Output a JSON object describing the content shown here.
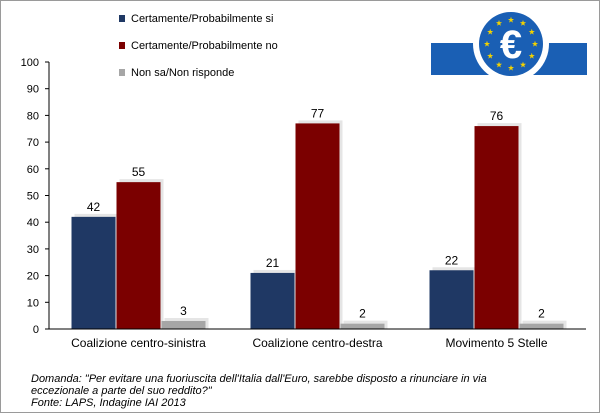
{
  "chart_data": {
    "type": "bar",
    "categories": [
      "Coalizione centro-sinistra",
      "Coalizione centro-destra",
      "Movimento 5 Stelle"
    ],
    "series": [
      {
        "name": "Certamente/Probabilmente si",
        "color": "#1F3864",
        "values": [
          42,
          21,
          22
        ]
      },
      {
        "name": "Certamente/Probabilmente no",
        "color": "#7B0000",
        "values": [
          55,
          77,
          76
        ]
      },
      {
        "name": "Non sa/Non risponde",
        "color": "#A6A6A6",
        "values": [
          3,
          2,
          2
        ]
      }
    ],
    "ylim": [
      0,
      100
    ],
    "yticks": [
      0,
      10,
      20,
      30,
      40,
      50,
      60,
      70,
      80,
      90,
      100
    ],
    "grid": false,
    "legend_position": "top-left",
    "data_labels": true
  },
  "logo": {
    "icon": "euro-symbol-icon",
    "text": "€",
    "color": "#1A5FB4"
  },
  "note": {
    "question_line1": "Domanda: \"Per evitare una fuoriuscita dell'Italia dall'Euro, sarebbe disposto a rinunciare in via",
    "question_line2": "eccezionale a parte del suo reddito?\"",
    "source": "Fonte: LAPS, Indagine IAI 2013"
  }
}
